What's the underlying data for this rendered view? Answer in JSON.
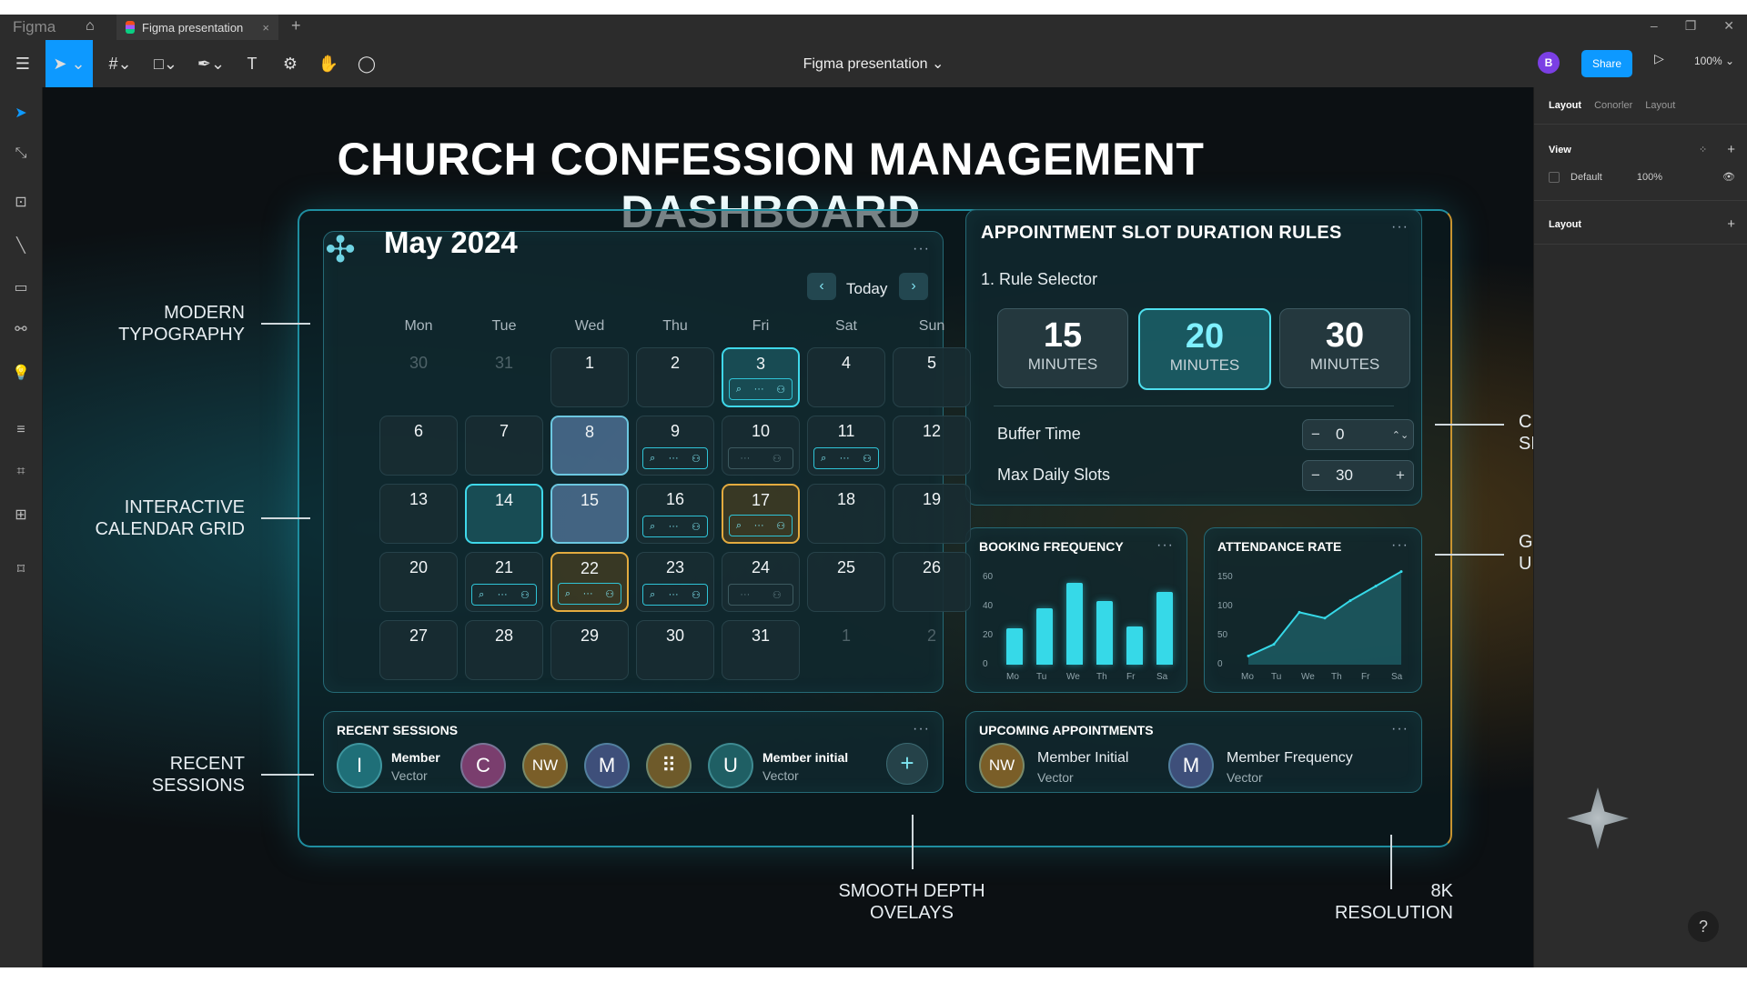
{
  "app": {
    "brand": "Figma",
    "tab_title": "Figma presentation",
    "doc_title": "Figma presentation ⌄",
    "avatar": "B",
    "share": "Share",
    "zoom": "100% ⌄"
  },
  "right_panel": {
    "tabs": [
      "Layout",
      "Conorler",
      "Layout"
    ],
    "view_label": "View",
    "default_label": "Default",
    "default_value": "100%",
    "layout_label": "Layout"
  },
  "canvas": {
    "title": "CHURCH CONFESSION MANAGEMENT DASHBOARD",
    "annotations": {
      "modern_typography": [
        "MODERN",
        "TYPOGRAPHY"
      ],
      "calendar_grid": [
        "INTERACTIVE",
        "CALENDAR GRID"
      ],
      "recent_sessions": [
        "RECENT",
        "SESSIONS"
      ],
      "settings_panel": [
        "CUSTOMIZABLE",
        "SETTINGS PANEL"
      ],
      "glass": [
        "GLASSMORPHISM",
        "UI STYLE"
      ],
      "depth": [
        "SMOOTH DEPTH",
        "OVELAYS"
      ],
      "resolution": [
        "8K",
        "RESOLUTION"
      ]
    }
  },
  "calendar": {
    "month": "May 2024",
    "today": "Today",
    "days": [
      "Mon",
      "Tue",
      "Wed",
      "Thu",
      "Fri",
      "Sat",
      "Sun"
    ],
    "weeks": [
      [
        {
          "d": "30",
          "dim": true
        },
        {
          "d": "31",
          "dim": true
        },
        {
          "d": "1"
        },
        {
          "d": "2"
        },
        {
          "d": "3",
          "style": "sel-teal",
          "chip": true
        },
        {
          "d": "4"
        },
        {
          "d": "5"
        }
      ],
      [
        {
          "d": "6"
        },
        {
          "d": "7"
        },
        {
          "d": "8",
          "style": "sel-blue"
        },
        {
          "d": "9",
          "chip": true
        },
        {
          "d": "10",
          "chip": "faint"
        },
        {
          "d": "11",
          "chip": true
        },
        {
          "d": "12"
        }
      ],
      [
        {
          "d": "13"
        },
        {
          "d": "14",
          "style": "sel-teal"
        },
        {
          "d": "15",
          "style": "sel-blue"
        },
        {
          "d": "16",
          "chip": true
        },
        {
          "d": "17",
          "style": "sel-gold",
          "chip": true
        },
        {
          "d": "18"
        },
        {
          "d": "19"
        }
      ],
      [
        {
          "d": "20"
        },
        {
          "d": "21",
          "chip": true
        },
        {
          "d": "22",
          "style": "sel-gold",
          "chip": true
        },
        {
          "d": "23",
          "chip": true
        },
        {
          "d": "24",
          "chip": "faint"
        },
        {
          "d": "25"
        },
        {
          "d": "26"
        }
      ],
      [
        {
          "d": "27"
        },
        {
          "d": "28"
        },
        {
          "d": "29"
        },
        {
          "d": "30"
        },
        {
          "d": "31"
        },
        {
          "d": "1",
          "dim": true
        },
        {
          "d": "2",
          "dim": true
        }
      ]
    ]
  },
  "rules": {
    "title": "APPOINTMENT SLOT DURATION RULES",
    "selector": "1. Rule Selector",
    "durations": [
      {
        "n": "15",
        "u": "MINUTES",
        "on": false
      },
      {
        "n": "20",
        "u": "MINUTES",
        "on": true
      },
      {
        "n": "30",
        "u": "MINUTES",
        "on": false
      }
    ],
    "buffer_label": "Buffer Time",
    "buffer_value": "0",
    "max_label": "Max Daily Slots",
    "max_value": "30"
  },
  "booking": {
    "title": "BOOKING FREQUENCY",
    "yticks": [
      "60",
      "40",
      "20",
      "0"
    ],
    "xticks": [
      "Mo",
      "Tu",
      "We",
      "Th",
      "Fr",
      "Sa"
    ]
  },
  "attendance": {
    "title": "ATTENDANCE RATE",
    "yticks": [
      "150",
      "100",
      "50",
      "0"
    ],
    "xticks": [
      "Mo",
      "Tu",
      "We",
      "Th",
      "Fr",
      "Sa"
    ]
  },
  "chart_data": [
    {
      "type": "bar",
      "title": "BOOKING FREQUENCY",
      "categories": [
        "Mo",
        "Tu",
        "We",
        "Th",
        "Fr",
        "Sa"
      ],
      "values": [
        25,
        39,
        56,
        44,
        26,
        50
      ],
      "ylim": [
        0,
        60
      ],
      "color": "#36d9e8"
    },
    {
      "type": "area",
      "title": "ATTENDANCE RATE",
      "x": [
        "Mo",
        "Tu",
        "We",
        "Th",
        "Fr",
        "Sa",
        "Sa"
      ],
      "values": [
        15,
        35,
        90,
        80,
        110,
        135,
        160
      ],
      "ylim": [
        0,
        150
      ],
      "color": "#36d9e8"
    }
  ],
  "recent_sessions": {
    "title": "RECENT SESSIONS",
    "people": [
      {
        "initial": "I",
        "color": "#1f6f78",
        "name": "Member",
        "sub": "Vector"
      },
      {
        "initial": "C",
        "color": "#7a3e6e"
      },
      {
        "initial": "NW",
        "color": "#7a5e28"
      },
      {
        "initial": "M",
        "color": "#3e4f7a"
      },
      {
        "initial": "⠿",
        "color": "#6e5a2a"
      },
      {
        "initial": "U",
        "color": "#1f5f64",
        "name": "Member initial",
        "sub": "Vector"
      }
    ],
    "add": "+"
  },
  "upcoming": {
    "title": "UPCOMING APPOINTMENTS",
    "items": [
      {
        "initial": "NW",
        "color": "#7a5e28",
        "name": "Member Initial",
        "sub": "Vector"
      },
      {
        "initial": "M",
        "color": "#3e4f7a",
        "name": "Member Frequency",
        "sub": "Vector"
      }
    ]
  }
}
